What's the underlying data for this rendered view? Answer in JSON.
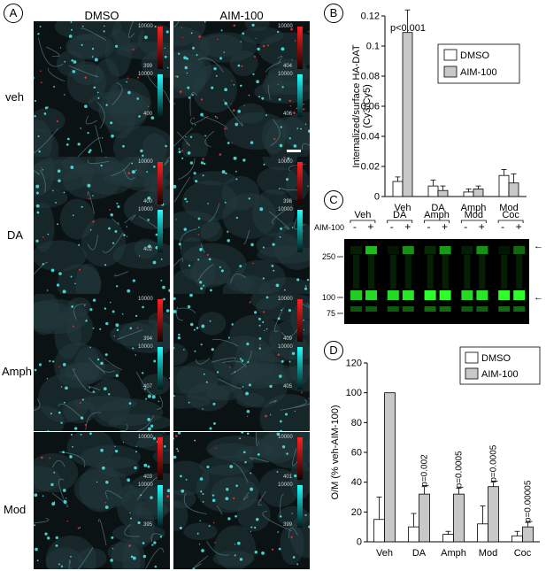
{
  "panel_letters": {
    "a": "A",
    "b": "B",
    "c": "C",
    "d": "D"
  },
  "panel_a": {
    "columns": [
      "DMSO",
      "AIM-100"
    ],
    "rows": [
      "veh",
      "DA",
      "Amph",
      "Mod"
    ],
    "colorbar_max": "10000",
    "tiles": [
      {
        "red_min": "399",
        "cyan_max": "10000",
        "cyan_min": "400"
      },
      {
        "red_min": "404",
        "cyan_max": "10000",
        "cyan_min": "406"
      },
      {
        "red_min": "400",
        "cyan_max": "10000",
        "cyan_min": "402"
      },
      {
        "red_min": "398",
        "cyan_max": "10000",
        "cyan_min": ""
      },
      {
        "red_min": "394",
        "cyan_max": "10000",
        "cyan_min": "407"
      },
      {
        "red_min": "409",
        "cyan_max": "10000",
        "cyan_min": "405"
      },
      {
        "red_min": "403",
        "cyan_max": "10000",
        "cyan_min": "395"
      },
      {
        "red_min": "401",
        "cyan_max": "10000",
        "cyan_min": "399"
      }
    ]
  },
  "panel_c": {
    "lanes": [
      "Veh",
      "DA",
      "Amph",
      "Mod",
      "Coc"
    ],
    "aim_label": "AIM-100",
    "signs": [
      "-",
      "+"
    ],
    "mw_markers": [
      "250",
      "100",
      "75"
    ],
    "band_labels": [
      "← O",
      "← M"
    ]
  },
  "chart_data": [
    {
      "type": "bar",
      "title": "",
      "ylabel": "Internalized/surface HA-DAT (Cy3/Cy5)",
      "ylim": [
        0,
        0.12
      ],
      "yticks": [
        "0",
        "0.02",
        "0.04",
        "0.06",
        "0.08",
        "0.1",
        "0.12"
      ],
      "categories": [
        "Veh",
        "DA",
        "Amph",
        "Mod"
      ],
      "series": [
        {
          "name": "DMSO",
          "color": "#ffffff",
          "values": [
            0.01,
            0.007,
            0.003,
            0.014
          ],
          "errors": [
            0.003,
            0.004,
            0.002,
            0.004
          ]
        },
        {
          "name": "AIM-100",
          "color": "#c8c8c8",
          "values": [
            0.109,
            0.004,
            0.005,
            0.009
          ],
          "errors": [
            0.015,
            0.003,
            0.002,
            0.006
          ]
        }
      ],
      "annotations": [
        "p<0.001"
      ],
      "legend_position": "top-right"
    },
    {
      "type": "bar",
      "title": "",
      "ylabel": "O/M (% veh-AIM-100)",
      "ylim": [
        0,
        120
      ],
      "yticks": [
        "0",
        "20",
        "40",
        "60",
        "80",
        "100",
        "120"
      ],
      "categories": [
        "Veh",
        "DA",
        "Amph",
        "Mod",
        "Coc"
      ],
      "series": [
        {
          "name": "DMSO",
          "color": "#ffffff",
          "values": [
            15,
            10,
            5,
            12,
            4
          ],
          "errors": [
            15,
            9,
            2,
            12,
            3
          ]
        },
        {
          "name": "AIM-100",
          "color": "#c8c8c8",
          "values": [
            100,
            32,
            32,
            37,
            10
          ],
          "errors": [
            0,
            5,
            4,
            3,
            3
          ]
        }
      ],
      "annotations": [
        "",
        "p=0.002",
        "p=0.0005",
        "p=0.0005",
        "p=0.00005"
      ],
      "legend_position": "top-right"
    }
  ]
}
